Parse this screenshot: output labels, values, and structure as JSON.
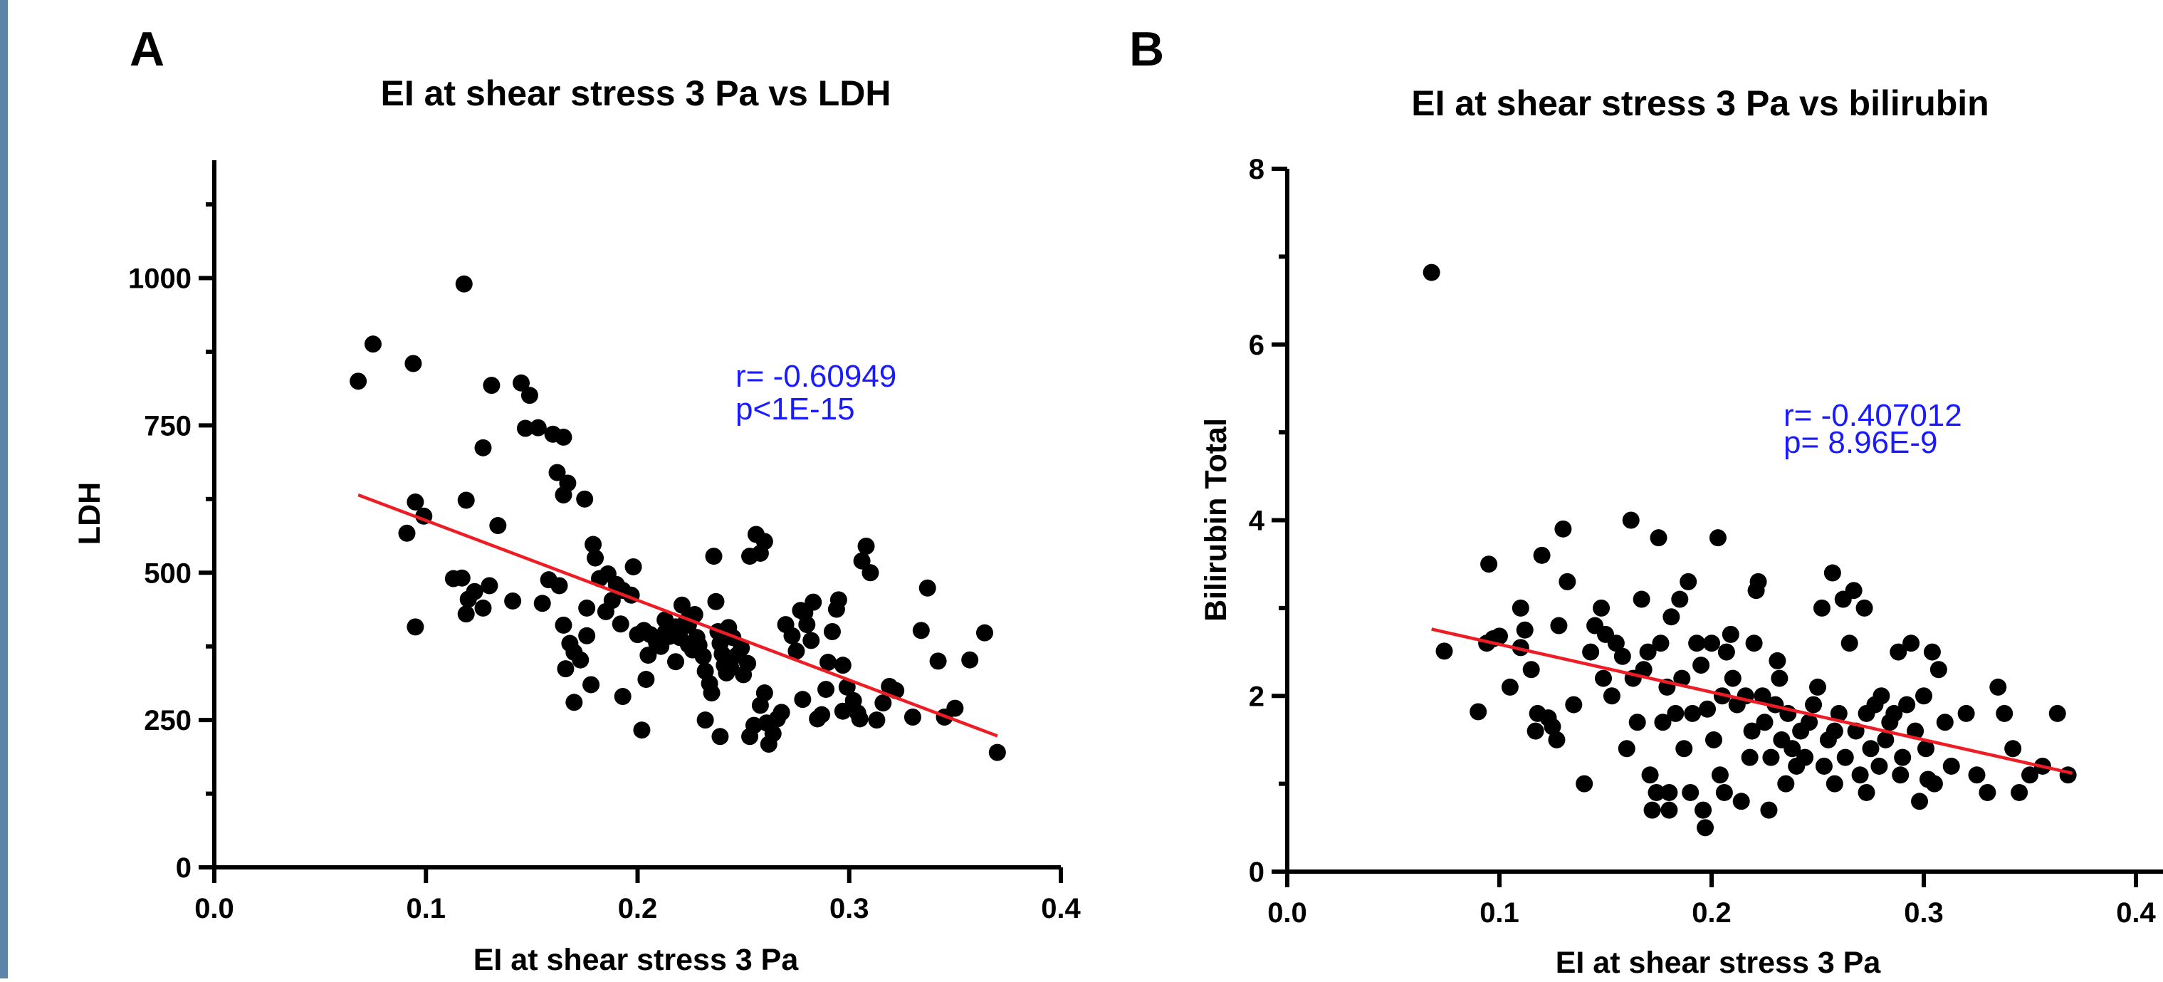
{
  "colors": {
    "left_border": "#5b84a8",
    "points": "#000000",
    "fit_line": "#ee1c25",
    "annotation": "#1a1aff"
  },
  "chart_data": [
    {
      "type": "scatter",
      "panel": "A",
      "title": "EI at shear stress 3 Pa vs LDH",
      "xlabel": "EI at shear stress 3 Pa",
      "ylabel": "LDH",
      "xlim": [
        0.0,
        0.4
      ],
      "ylim": [
        0,
        1200
      ],
      "xticks": [
        "0.0",
        "0.1",
        "0.2",
        "0.3",
        "0.4"
      ],
      "yticks": [
        "0",
        "250",
        "500",
        "750",
        "1000"
      ],
      "annotations": [
        "r= -0.60949",
        "p<1E-15"
      ],
      "trendline": {
        "x": [
          0.068,
          0.37
        ],
        "y": [
          632,
          223
        ]
      },
      "points": [
        [
          0.068,
          825
        ],
        [
          0.075,
          888
        ],
        [
          0.094,
          855
        ],
        [
          0.118,
          990
        ],
        [
          0.091,
          567
        ],
        [
          0.095,
          620
        ],
        [
          0.099,
          596
        ],
        [
          0.095,
          408
        ],
        [
          0.113,
          490
        ],
        [
          0.117,
          491
        ],
        [
          0.12,
          455
        ],
        [
          0.119,
          430
        ],
        [
          0.123,
          468
        ],
        [
          0.127,
          440
        ],
        [
          0.13,
          478
        ],
        [
          0.127,
          712
        ],
        [
          0.131,
          818
        ],
        [
          0.119,
          623
        ],
        [
          0.134,
          580
        ],
        [
          0.141,
          452
        ],
        [
          0.145,
          822
        ],
        [
          0.149,
          801
        ],
        [
          0.147,
          745
        ],
        [
          0.153,
          746
        ],
        [
          0.16,
          735
        ],
        [
          0.165,
          730
        ],
        [
          0.162,
          670
        ],
        [
          0.167,
          652
        ],
        [
          0.165,
          632
        ],
        [
          0.175,
          625
        ],
        [
          0.158,
          488
        ],
        [
          0.163,
          478
        ],
        [
          0.165,
          411
        ],
        [
          0.168,
          380
        ],
        [
          0.17,
          365
        ],
        [
          0.166,
          337
        ],
        [
          0.173,
          352
        ],
        [
          0.176,
          393
        ],
        [
          0.17,
          280
        ],
        [
          0.178,
          310
        ],
        [
          0.179,
          548
        ],
        [
          0.18,
          525
        ],
        [
          0.182,
          490
        ],
        [
          0.186,
          498
        ],
        [
          0.19,
          480
        ],
        [
          0.193,
          470
        ],
        [
          0.197,
          462
        ],
        [
          0.198,
          510
        ],
        [
          0.2,
          395
        ],
        [
          0.203,
          402
        ],
        [
          0.206,
          395
        ],
        [
          0.209,
          381
        ],
        [
          0.202,
          233
        ],
        [
          0.204,
          319
        ],
        [
          0.193,
          290
        ],
        [
          0.211,
          375
        ],
        [
          0.213,
          398
        ],
        [
          0.215,
          392
        ],
        [
          0.218,
          408
        ],
        [
          0.22,
          390
        ],
        [
          0.221,
          445
        ],
        [
          0.223,
          418
        ],
        [
          0.224,
          378
        ],
        [
          0.226,
          369
        ],
        [
          0.228,
          390
        ],
        [
          0.229,
          377
        ],
        [
          0.231,
          358
        ],
        [
          0.232,
          333
        ],
        [
          0.234,
          312
        ],
        [
          0.235,
          296
        ],
        [
          0.236,
          528
        ],
        [
          0.237,
          451
        ],
        [
          0.238,
          400
        ],
        [
          0.239,
          380
        ],
        [
          0.24,
          362
        ],
        [
          0.241,
          343
        ],
        [
          0.242,
          330
        ],
        [
          0.243,
          407
        ],
        [
          0.245,
          390
        ],
        [
          0.247,
          360
        ],
        [
          0.249,
          372
        ],
        [
          0.25,
          327
        ],
        [
          0.252,
          346
        ],
        [
          0.253,
          528
        ],
        [
          0.256,
          565
        ],
        [
          0.258,
          533
        ],
        [
          0.26,
          553
        ],
        [
          0.253,
          222
        ],
        [
          0.255,
          241
        ],
        [
          0.258,
          275
        ],
        [
          0.26,
          296
        ],
        [
          0.262,
          209
        ],
        [
          0.264,
          227
        ],
        [
          0.266,
          252
        ],
        [
          0.268,
          263
        ],
        [
          0.27,
          412
        ],
        [
          0.273,
          393
        ],
        [
          0.275,
          367
        ],
        [
          0.277,
          436
        ],
        [
          0.279,
          432
        ],
        [
          0.28,
          412
        ],
        [
          0.282,
          385
        ],
        [
          0.283,
          450
        ],
        [
          0.285,
          252
        ],
        [
          0.287,
          259
        ],
        [
          0.289,
          302
        ],
        [
          0.29,
          348
        ],
        [
          0.292,
          400
        ],
        [
          0.294,
          438
        ],
        [
          0.295,
          454
        ],
        [
          0.297,
          343
        ],
        [
          0.299,
          306
        ],
        [
          0.302,
          283
        ],
        [
          0.304,
          262
        ],
        [
          0.305,
          252
        ],
        [
          0.306,
          520
        ],
        [
          0.308,
          545
        ],
        [
          0.31,
          500
        ],
        [
          0.313,
          250
        ],
        [
          0.316,
          279
        ],
        [
          0.319,
          307
        ],
        [
          0.322,
          300
        ],
        [
          0.33,
          255
        ],
        [
          0.334,
          402
        ],
        [
          0.337,
          474
        ],
        [
          0.342,
          350
        ],
        [
          0.345,
          255
        ],
        [
          0.35,
          270
        ],
        [
          0.357,
          352
        ],
        [
          0.364,
          398
        ],
        [
          0.37,
          195
        ],
        [
          0.232,
          250
        ],
        [
          0.218,
          349
        ],
        [
          0.205,
          360
        ],
        [
          0.188,
          453
        ],
        [
          0.185,
          434
        ],
        [
          0.176,
          440
        ],
        [
          0.239,
          222
        ],
        [
          0.261,
          245
        ],
        [
          0.278,
          285
        ],
        [
          0.297,
          265
        ],
        [
          0.224,
          411
        ],
        [
          0.244,
          339
        ],
        [
          0.213,
          420
        ],
        [
          0.227,
          429
        ],
        [
          0.192,
          413
        ],
        [
          0.155,
          448
        ]
      ]
    },
    {
      "type": "scatter",
      "panel": "B",
      "title": "EI at shear stress 3 Pa vs bilirubin",
      "xlabel": "EI at shear stress 3 Pa",
      "ylabel": "Bilirubin Total",
      "xlim": [
        0.0,
        0.4
      ],
      "ylim": [
        0,
        8
      ],
      "xticks": [
        "0.0",
        "0.1",
        "0.2",
        "0.3",
        "0.4"
      ],
      "yticks": [
        "0",
        "2",
        "4",
        "6",
        "8"
      ],
      "annotations": [
        "r= -0.407012",
        "p= 8.96E-9"
      ],
      "trendline": {
        "x": [
          0.068,
          0.37
        ],
        "y": [
          2.76,
          1.12
        ]
      },
      "points": [
        [
          0.068,
          6.82
        ],
        [
          0.074,
          2.51
        ],
        [
          0.09,
          1.82
        ],
        [
          0.094,
          2.6
        ],
        [
          0.097,
          2.65
        ],
        [
          0.095,
          3.5
        ],
        [
          0.1,
          2.68
        ],
        [
          0.105,
          2.1
        ],
        [
          0.11,
          3.0
        ],
        [
          0.11,
          2.55
        ],
        [
          0.112,
          2.75
        ],
        [
          0.115,
          2.3
        ],
        [
          0.117,
          1.6
        ],
        [
          0.118,
          1.8
        ],
        [
          0.12,
          3.6
        ],
        [
          0.123,
          1.75
        ],
        [
          0.125,
          1.65
        ],
        [
          0.127,
          1.5
        ],
        [
          0.13,
          3.9
        ],
        [
          0.132,
          3.3
        ],
        [
          0.128,
          2.8
        ],
        [
          0.135,
          1.9
        ],
        [
          0.14,
          1.0
        ],
        [
          0.143,
          2.5
        ],
        [
          0.145,
          2.8
        ],
        [
          0.148,
          3.0
        ],
        [
          0.15,
          2.7
        ],
        [
          0.153,
          2.0
        ],
        [
          0.155,
          2.6
        ],
        [
          0.158,
          2.45
        ],
        [
          0.16,
          1.4
        ],
        [
          0.162,
          4.0
        ],
        [
          0.163,
          2.2
        ],
        [
          0.165,
          1.7
        ],
        [
          0.167,
          3.1
        ],
        [
          0.168,
          2.3
        ],
        [
          0.17,
          2.5
        ],
        [
          0.171,
          1.1
        ],
        [
          0.172,
          0.7
        ],
        [
          0.174,
          0.9
        ],
        [
          0.175,
          3.8
        ],
        [
          0.176,
          2.6
        ],
        [
          0.177,
          1.7
        ],
        [
          0.179,
          2.1
        ],
        [
          0.18,
          0.9
        ],
        [
          0.181,
          2.9
        ],
        [
          0.183,
          1.8
        ],
        [
          0.185,
          3.1
        ],
        [
          0.187,
          1.4
        ],
        [
          0.189,
          3.3
        ],
        [
          0.19,
          0.9
        ],
        [
          0.191,
          1.8
        ],
        [
          0.193,
          2.6
        ],
        [
          0.195,
          2.35
        ],
        [
          0.196,
          0.7
        ],
        [
          0.197,
          0.5
        ],
        [
          0.198,
          1.85
        ],
        [
          0.2,
          2.6
        ],
        [
          0.201,
          1.5
        ],
        [
          0.203,
          3.8
        ],
        [
          0.204,
          1.1
        ],
        [
          0.205,
          2.0
        ],
        [
          0.207,
          2.5
        ],
        [
          0.209,
          2.7
        ],
        [
          0.21,
          2.2
        ],
        [
          0.212,
          1.9
        ],
        [
          0.214,
          0.8
        ],
        [
          0.216,
          2.0
        ],
        [
          0.218,
          1.3
        ],
        [
          0.219,
          1.6
        ],
        [
          0.22,
          2.6
        ],
        [
          0.221,
          3.2
        ],
        [
          0.222,
          3.3
        ],
        [
          0.224,
          2.0
        ],
        [
          0.225,
          1.7
        ],
        [
          0.227,
          0.7
        ],
        [
          0.228,
          1.3
        ],
        [
          0.23,
          1.9
        ],
        [
          0.232,
          2.2
        ],
        [
          0.233,
          1.5
        ],
        [
          0.235,
          1.0
        ],
        [
          0.236,
          1.8
        ],
        [
          0.238,
          1.4
        ],
        [
          0.24,
          1.2
        ],
        [
          0.242,
          1.6
        ],
        [
          0.244,
          1.3
        ],
        [
          0.246,
          1.7
        ],
        [
          0.248,
          1.9
        ],
        [
          0.25,
          2.1
        ],
        [
          0.252,
          3.0
        ],
        [
          0.253,
          1.2
        ],
        [
          0.255,
          1.5
        ],
        [
          0.257,
          3.4
        ],
        [
          0.258,
          1.0
        ],
        [
          0.26,
          1.8
        ],
        [
          0.262,
          3.1
        ],
        [
          0.263,
          1.3
        ],
        [
          0.265,
          2.6
        ],
        [
          0.267,
          3.2
        ],
        [
          0.268,
          1.6
        ],
        [
          0.27,
          1.1
        ],
        [
          0.272,
          3.0
        ],
        [
          0.273,
          0.9
        ],
        [
          0.275,
          1.4
        ],
        [
          0.277,
          1.9
        ],
        [
          0.279,
          1.2
        ],
        [
          0.28,
          2.0
        ],
        [
          0.282,
          1.5
        ],
        [
          0.284,
          1.7
        ],
        [
          0.286,
          1.8
        ],
        [
          0.288,
          2.5
        ],
        [
          0.29,
          1.3
        ],
        [
          0.292,
          1.9
        ],
        [
          0.294,
          2.6
        ],
        [
          0.296,
          1.6
        ],
        [
          0.298,
          0.8
        ],
        [
          0.3,
          2.0
        ],
        [
          0.301,
          1.4
        ],
        [
          0.302,
          1.05
        ],
        [
          0.304,
          2.5
        ],
        [
          0.305,
          1.0
        ],
        [
          0.307,
          2.3
        ],
        [
          0.31,
          1.7
        ],
        [
          0.313,
          1.2
        ],
        [
          0.32,
          1.8
        ],
        [
          0.325,
          1.1
        ],
        [
          0.33,
          0.9
        ],
        [
          0.335,
          2.1
        ],
        [
          0.338,
          1.8
        ],
        [
          0.342,
          1.4
        ],
        [
          0.345,
          0.9
        ],
        [
          0.35,
          1.1
        ],
        [
          0.356,
          1.2
        ],
        [
          0.363,
          1.8
        ],
        [
          0.368,
          1.1
        ],
        [
          0.18,
          0.7
        ],
        [
          0.186,
          2.2
        ],
        [
          0.206,
          0.9
        ],
        [
          0.231,
          2.4
        ],
        [
          0.258,
          1.6
        ],
        [
          0.273,
          1.8
        ],
        [
          0.289,
          1.1
        ],
        [
          0.149,
          2.2
        ]
      ]
    }
  ]
}
